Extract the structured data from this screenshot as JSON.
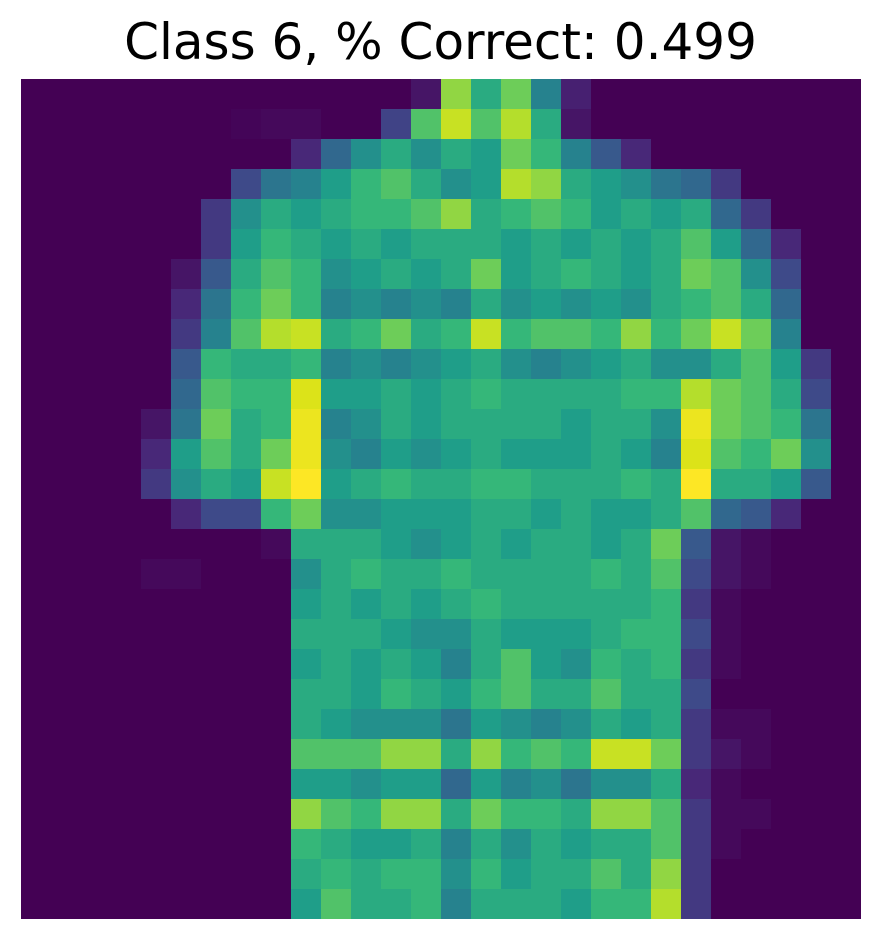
{
  "chart_data": {
    "type": "heatmap",
    "title": "Class 6, % Correct: 0.499",
    "colormap": "viridis",
    "vmin": 0,
    "vmax": 1,
    "axes_visible": false,
    "rows": 28,
    "cols": 28,
    "values": [
      [
        0.0,
        0.0,
        0.0,
        0.0,
        0.0,
        0.0,
        0.0,
        0.0,
        0.0,
        0.0,
        0.0,
        0.0,
        0.0,
        0.05,
        0.75,
        0.55,
        0.7,
        0.4,
        0.08,
        0.0,
        0.0,
        0.0,
        0.0,
        0.0,
        0.0,
        0.0,
        0.0,
        0.0
      ],
      [
        0.0,
        0.0,
        0.0,
        0.0,
        0.0,
        0.0,
        0.0,
        0.01,
        0.02,
        0.02,
        0.0,
        0.0,
        0.18,
        0.65,
        0.85,
        0.65,
        0.8,
        0.55,
        0.05,
        0.0,
        0.0,
        0.0,
        0.0,
        0.0,
        0.0,
        0.0,
        0.0,
        0.0
      ],
      [
        0.0,
        0.0,
        0.0,
        0.0,
        0.0,
        0.0,
        0.0,
        0.0,
        0.0,
        0.1,
        0.3,
        0.45,
        0.55,
        0.45,
        0.55,
        0.5,
        0.7,
        0.6,
        0.4,
        0.25,
        0.1,
        0.0,
        0.0,
        0.0,
        0.0,
        0.0,
        0.0,
        0.0
      ],
      [
        0.0,
        0.0,
        0.0,
        0.0,
        0.0,
        0.0,
        0.0,
        0.2,
        0.35,
        0.4,
        0.5,
        0.6,
        0.65,
        0.55,
        0.45,
        0.5,
        0.8,
        0.75,
        0.55,
        0.5,
        0.45,
        0.35,
        0.3,
        0.15,
        0.0,
        0.0,
        0.0,
        0.0
      ],
      [
        0.0,
        0.0,
        0.0,
        0.0,
        0.0,
        0.0,
        0.15,
        0.45,
        0.55,
        0.5,
        0.55,
        0.6,
        0.6,
        0.65,
        0.75,
        0.55,
        0.6,
        0.65,
        0.6,
        0.5,
        0.55,
        0.5,
        0.55,
        0.3,
        0.15,
        0.0,
        0.0,
        0.0
      ],
      [
        0.0,
        0.0,
        0.0,
        0.0,
        0.0,
        0.0,
        0.15,
        0.5,
        0.6,
        0.55,
        0.5,
        0.55,
        0.5,
        0.55,
        0.55,
        0.55,
        0.5,
        0.55,
        0.5,
        0.55,
        0.5,
        0.55,
        0.65,
        0.5,
        0.3,
        0.1,
        0.0,
        0.0
      ],
      [
        0.0,
        0.0,
        0.0,
        0.0,
        0.0,
        0.05,
        0.25,
        0.55,
        0.65,
        0.6,
        0.45,
        0.5,
        0.55,
        0.5,
        0.55,
        0.7,
        0.5,
        0.55,
        0.6,
        0.55,
        0.5,
        0.55,
        0.7,
        0.65,
        0.45,
        0.2,
        0.0,
        0.0
      ],
      [
        0.0,
        0.0,
        0.0,
        0.0,
        0.0,
        0.1,
        0.35,
        0.6,
        0.7,
        0.6,
        0.4,
        0.45,
        0.4,
        0.45,
        0.4,
        0.55,
        0.45,
        0.5,
        0.45,
        0.5,
        0.45,
        0.55,
        0.6,
        0.65,
        0.55,
        0.3,
        0.0,
        0.0
      ],
      [
        0.0,
        0.0,
        0.0,
        0.0,
        0.0,
        0.15,
        0.4,
        0.65,
        0.8,
        0.85,
        0.55,
        0.6,
        0.7,
        0.55,
        0.6,
        0.85,
        0.6,
        0.65,
        0.65,
        0.6,
        0.75,
        0.6,
        0.7,
        0.85,
        0.7,
        0.4,
        0.0,
        0.0
      ],
      [
        0.0,
        0.0,
        0.0,
        0.0,
        0.0,
        0.25,
        0.6,
        0.55,
        0.55,
        0.6,
        0.4,
        0.45,
        0.4,
        0.45,
        0.5,
        0.55,
        0.45,
        0.4,
        0.45,
        0.5,
        0.55,
        0.45,
        0.45,
        0.55,
        0.65,
        0.5,
        0.15,
        0.0
      ],
      [
        0.0,
        0.0,
        0.0,
        0.0,
        0.0,
        0.3,
        0.65,
        0.6,
        0.6,
        0.9,
        0.5,
        0.5,
        0.55,
        0.5,
        0.55,
        0.6,
        0.55,
        0.55,
        0.55,
        0.55,
        0.6,
        0.6,
        0.8,
        0.7,
        0.65,
        0.55,
        0.2,
        0.0
      ],
      [
        0.0,
        0.0,
        0.0,
        0.0,
        0.05,
        0.35,
        0.7,
        0.55,
        0.6,
        0.95,
        0.4,
        0.45,
        0.55,
        0.5,
        0.55,
        0.55,
        0.55,
        0.55,
        0.5,
        0.55,
        0.55,
        0.45,
        0.95,
        0.7,
        0.65,
        0.6,
        0.35,
        0.0
      ],
      [
        0.0,
        0.0,
        0.0,
        0.0,
        0.1,
        0.5,
        0.65,
        0.55,
        0.7,
        0.95,
        0.45,
        0.4,
        0.5,
        0.45,
        0.5,
        0.55,
        0.5,
        0.5,
        0.5,
        0.55,
        0.5,
        0.4,
        0.9,
        0.65,
        0.6,
        0.7,
        0.45,
        0.0
      ],
      [
        0.0,
        0.0,
        0.0,
        0.0,
        0.15,
        0.45,
        0.55,
        0.5,
        0.85,
        1.0,
        0.5,
        0.55,
        0.6,
        0.55,
        0.55,
        0.6,
        0.6,
        0.55,
        0.55,
        0.55,
        0.6,
        0.55,
        1.0,
        0.55,
        0.55,
        0.5,
        0.25,
        0.0
      ],
      [
        0.0,
        0.0,
        0.0,
        0.0,
        0.0,
        0.1,
        0.2,
        0.2,
        0.6,
        0.7,
        0.45,
        0.45,
        0.5,
        0.5,
        0.5,
        0.55,
        0.55,
        0.5,
        0.55,
        0.5,
        0.5,
        0.55,
        0.65,
        0.3,
        0.25,
        0.1,
        0.0,
        0.0
      ],
      [
        0.0,
        0.0,
        0.0,
        0.0,
        0.0,
        0.0,
        0.0,
        0.0,
        0.02,
        0.55,
        0.55,
        0.55,
        0.5,
        0.45,
        0.5,
        0.55,
        0.5,
        0.55,
        0.55,
        0.5,
        0.55,
        0.7,
        0.25,
        0.05,
        0.02,
        0.0,
        0.0,
        0.0
      ],
      [
        0.0,
        0.0,
        0.0,
        0.0,
        0.02,
        0.02,
        0.0,
        0.0,
        0.0,
        0.45,
        0.55,
        0.6,
        0.55,
        0.55,
        0.6,
        0.55,
        0.55,
        0.55,
        0.55,
        0.6,
        0.55,
        0.65,
        0.2,
        0.05,
        0.02,
        0.0,
        0.0,
        0.0
      ],
      [
        0.0,
        0.0,
        0.0,
        0.0,
        0.0,
        0.0,
        0.0,
        0.0,
        0.0,
        0.5,
        0.55,
        0.5,
        0.55,
        0.5,
        0.55,
        0.6,
        0.55,
        0.55,
        0.55,
        0.55,
        0.55,
        0.6,
        0.15,
        0.02,
        0.0,
        0.0,
        0.0,
        0.0
      ],
      [
        0.0,
        0.0,
        0.0,
        0.0,
        0.0,
        0.0,
        0.0,
        0.0,
        0.0,
        0.55,
        0.55,
        0.55,
        0.5,
        0.45,
        0.45,
        0.55,
        0.5,
        0.5,
        0.5,
        0.55,
        0.6,
        0.6,
        0.2,
        0.02,
        0.0,
        0.0,
        0.0,
        0.0
      ],
      [
        0.0,
        0.0,
        0.0,
        0.0,
        0.0,
        0.0,
        0.0,
        0.0,
        0.0,
        0.5,
        0.55,
        0.5,
        0.55,
        0.5,
        0.4,
        0.55,
        0.65,
        0.5,
        0.45,
        0.6,
        0.55,
        0.6,
        0.15,
        0.02,
        0.0,
        0.0,
        0.0,
        0.0
      ],
      [
        0.0,
        0.0,
        0.0,
        0.0,
        0.0,
        0.0,
        0.0,
        0.0,
        0.0,
        0.55,
        0.55,
        0.5,
        0.6,
        0.55,
        0.5,
        0.6,
        0.65,
        0.55,
        0.55,
        0.65,
        0.55,
        0.55,
        0.2,
        0.0,
        0.0,
        0.0,
        0.0,
        0.0
      ],
      [
        0.0,
        0.0,
        0.0,
        0.0,
        0.0,
        0.0,
        0.0,
        0.0,
        0.0,
        0.55,
        0.5,
        0.45,
        0.45,
        0.45,
        0.35,
        0.5,
        0.45,
        0.4,
        0.45,
        0.55,
        0.5,
        0.55,
        0.15,
        0.02,
        0.02,
        0.0,
        0.0,
        0.0
      ],
      [
        0.0,
        0.0,
        0.0,
        0.0,
        0.0,
        0.0,
        0.0,
        0.0,
        0.0,
        0.65,
        0.65,
        0.65,
        0.75,
        0.75,
        0.55,
        0.75,
        0.6,
        0.65,
        0.6,
        0.85,
        0.85,
        0.7,
        0.15,
        0.05,
        0.02,
        0.0,
        0.0,
        0.0
      ],
      [
        0.0,
        0.0,
        0.0,
        0.0,
        0.0,
        0.0,
        0.0,
        0.0,
        0.0,
        0.5,
        0.5,
        0.45,
        0.5,
        0.5,
        0.3,
        0.5,
        0.4,
        0.45,
        0.35,
        0.45,
        0.45,
        0.55,
        0.1,
        0.02,
        0.0,
        0.0,
        0.0,
        0.0
      ],
      [
        0.0,
        0.0,
        0.0,
        0.0,
        0.0,
        0.0,
        0.0,
        0.0,
        0.0,
        0.75,
        0.65,
        0.6,
        0.75,
        0.75,
        0.55,
        0.7,
        0.6,
        0.6,
        0.55,
        0.75,
        0.75,
        0.65,
        0.15,
        0.02,
        0.02,
        0.0,
        0.0,
        0.0
      ],
      [
        0.0,
        0.0,
        0.0,
        0.0,
        0.0,
        0.0,
        0.0,
        0.0,
        0.0,
        0.6,
        0.55,
        0.5,
        0.5,
        0.55,
        0.4,
        0.55,
        0.45,
        0.55,
        0.5,
        0.55,
        0.55,
        0.65,
        0.15,
        0.02,
        0.0,
        0.0,
        0.0,
        0.0
      ],
      [
        0.0,
        0.0,
        0.0,
        0.0,
        0.0,
        0.0,
        0.0,
        0.0,
        0.0,
        0.55,
        0.6,
        0.55,
        0.6,
        0.6,
        0.45,
        0.6,
        0.5,
        0.55,
        0.55,
        0.65,
        0.55,
        0.75,
        0.15,
        0.0,
        0.0,
        0.0,
        0.0,
        0.0
      ],
      [
        0.0,
        0.0,
        0.0,
        0.0,
        0.0,
        0.0,
        0.0,
        0.0,
        0.0,
        0.5,
        0.65,
        0.55,
        0.55,
        0.6,
        0.4,
        0.55,
        0.55,
        0.55,
        0.5,
        0.6,
        0.6,
        0.8,
        0.15,
        0.0,
        0.0,
        0.0,
        0.0,
        0.0
      ]
    ]
  }
}
